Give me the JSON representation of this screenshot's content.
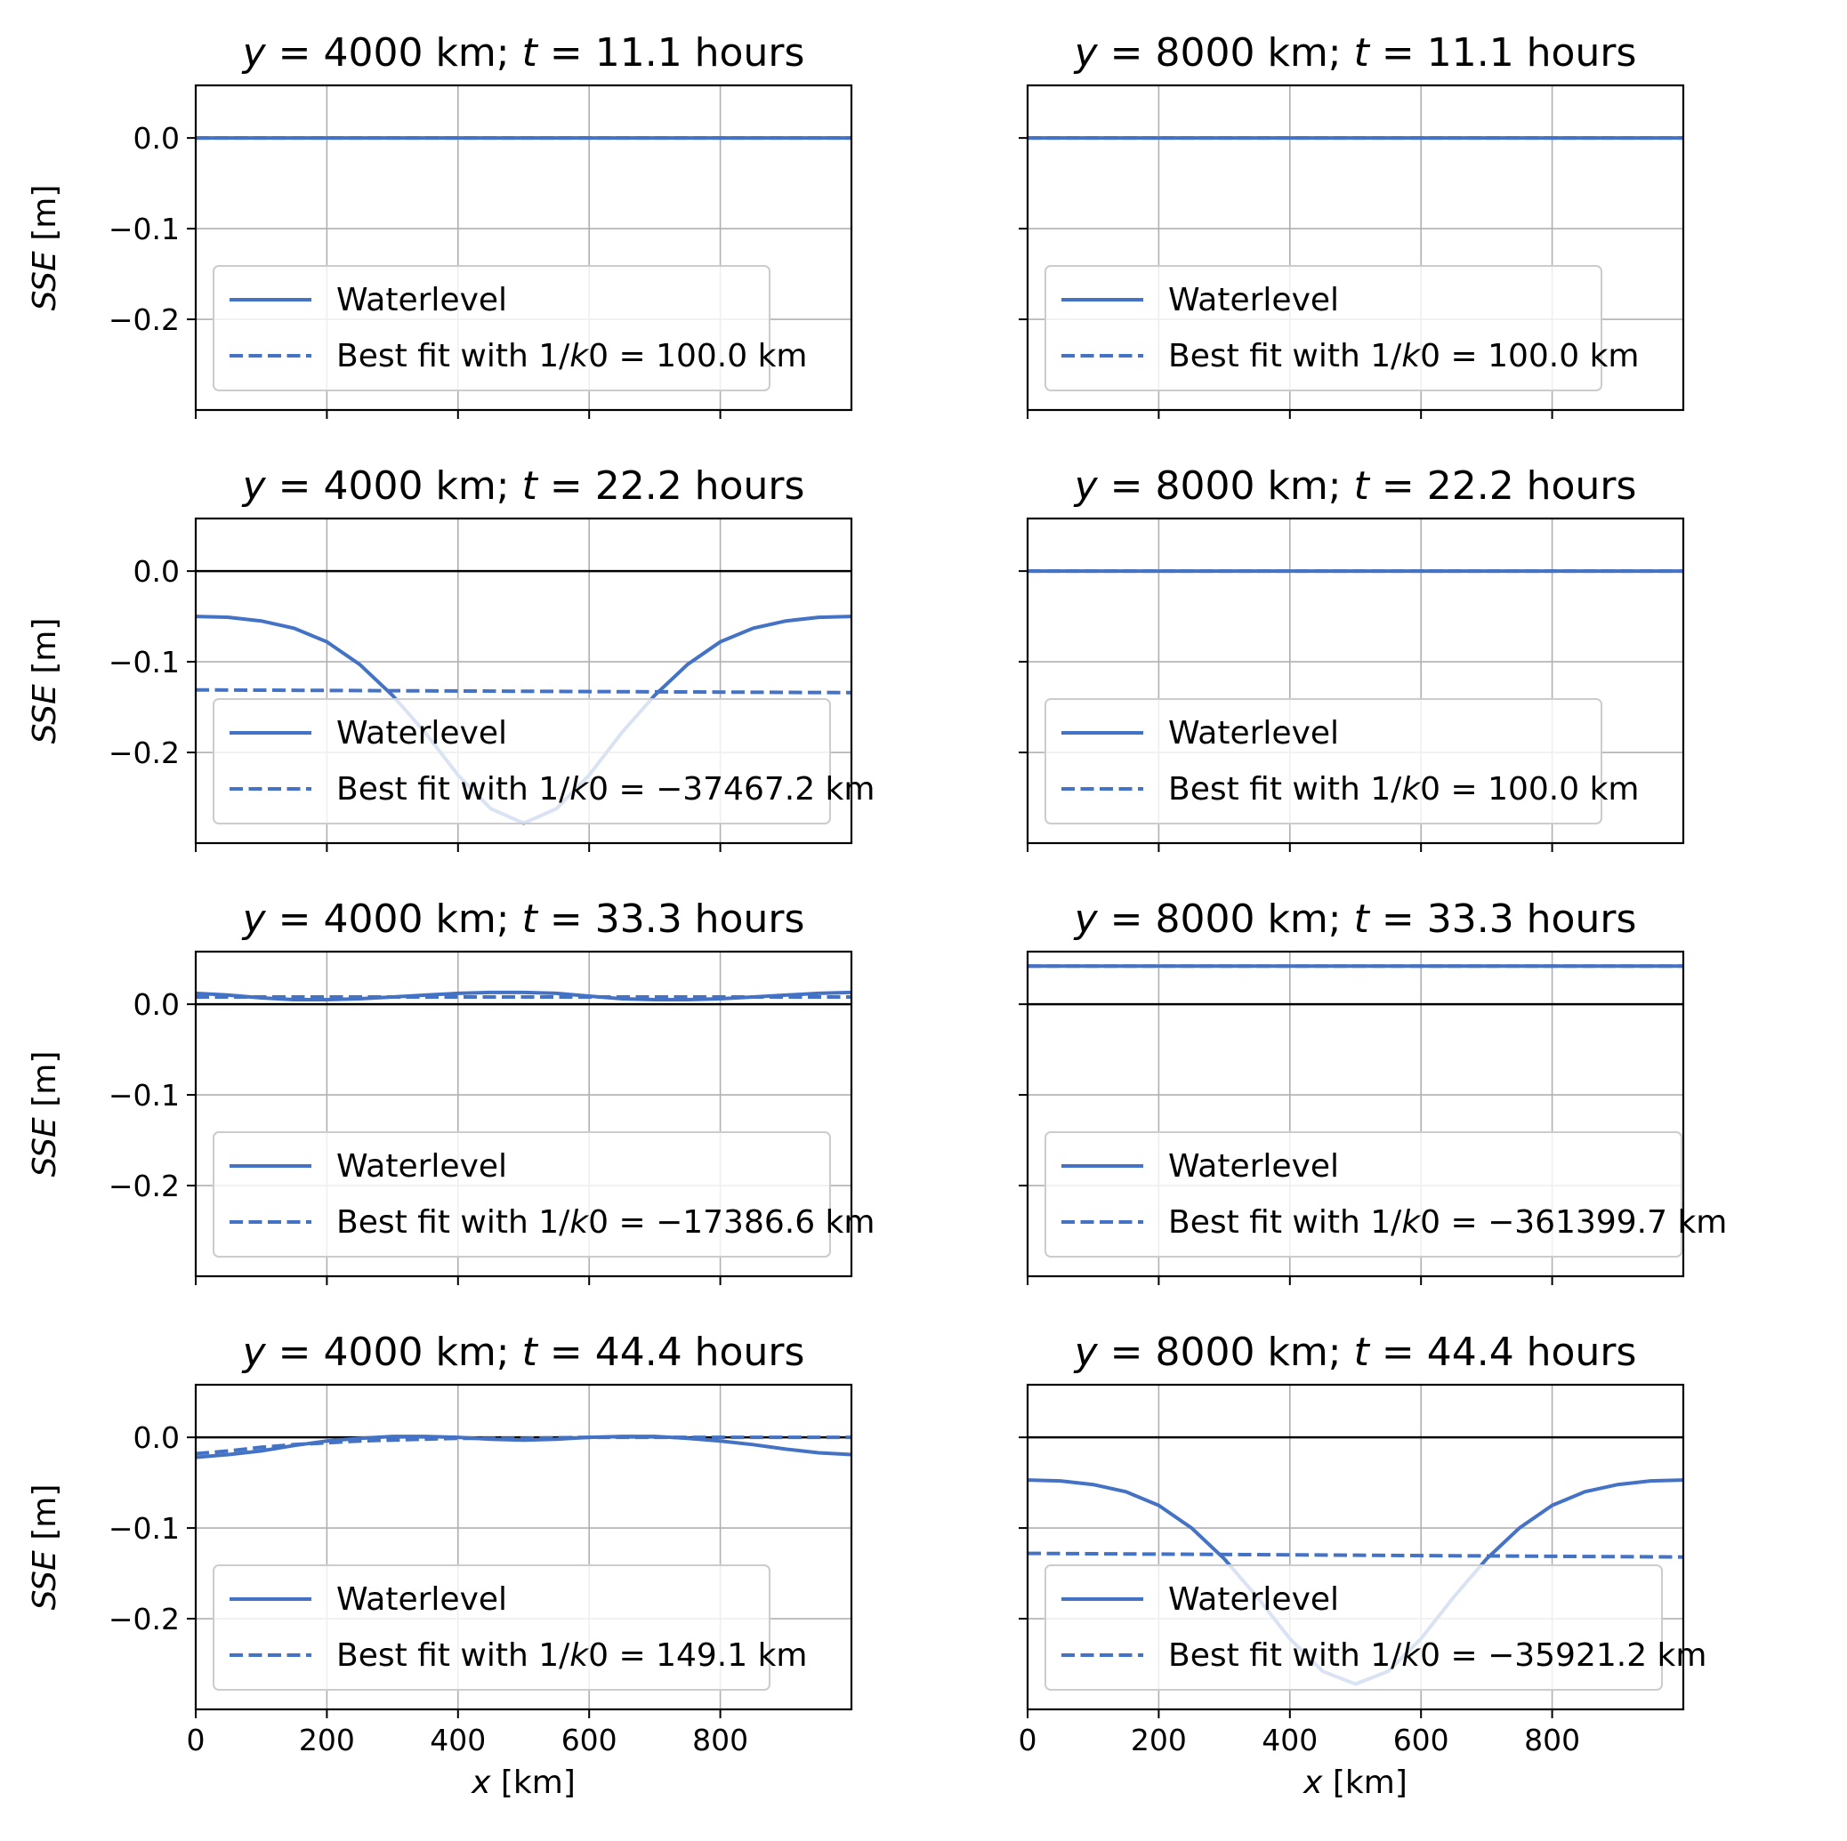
{
  "chart_data": {
    "type": "line",
    "figure": {
      "xlabel": "x [km]",
      "ylabel": "SSE [m]",
      "xlim": [
        0,
        1000
      ],
      "ylim": [
        -0.3,
        0.058
      ],
      "xticks": [
        0,
        200,
        400,
        600,
        800
      ],
      "xtick_labels": [
        "0",
        "200",
        "400",
        "600",
        "800"
      ],
      "yticks": [
        0.0,
        -0.1,
        -0.2
      ],
      "ytick_labels": [
        "0.0",
        "−0.1",
        "−0.2"
      ],
      "grid": true,
      "legend_placement": "lower-left",
      "zero_line_color": "#000000",
      "series_color": "#4472c4"
    },
    "panels": [
      {
        "title_y": "4000",
        "title_t": "11.1",
        "legend": [
          "Waterlevel",
          "Best fit with 1/k0 = 100.0 km"
        ],
        "fit_value": "= 100.0 km",
        "waterlevel": {
          "x": [
            0,
            1000
          ],
          "y": [
            0.0,
            0.0
          ]
        },
        "best_fit": {
          "x": [
            0,
            1000
          ],
          "y": [
            0.0,
            0.0
          ]
        }
      },
      {
        "title_y": "8000",
        "title_t": "11.1",
        "legend": [
          "Waterlevel",
          "Best fit with 1/k0 = 100.0 km"
        ],
        "fit_value": "= 100.0 km",
        "waterlevel": {
          "x": [
            0,
            1000
          ],
          "y": [
            0.0,
            0.0
          ]
        },
        "best_fit": {
          "x": [
            0,
            1000
          ],
          "y": [
            0.0,
            0.0
          ]
        }
      },
      {
        "title_y": "4000",
        "title_t": "22.2",
        "legend": [
          "Waterlevel",
          "Best fit with 1/k0 = −37467.2 km"
        ],
        "fit_value": "= −37467.2 km",
        "waterlevel": {
          "x": [
            0,
            50,
            100,
            150,
            200,
            250,
            300,
            350,
            400,
            450,
            500,
            550,
            600,
            650,
            700,
            750,
            800,
            850,
            900,
            950,
            1000
          ],
          "y": [
            -0.05,
            -0.051,
            -0.055,
            -0.063,
            -0.078,
            -0.103,
            -0.137,
            -0.178,
            -0.225,
            -0.262,
            -0.278,
            -0.262,
            -0.225,
            -0.178,
            -0.137,
            -0.103,
            -0.078,
            -0.063,
            -0.055,
            -0.051,
            -0.05
          ]
        },
        "best_fit": {
          "x": [
            0,
            1000
          ],
          "y": [
            -0.131,
            -0.134
          ]
        }
      },
      {
        "title_y": "8000",
        "title_t": "22.2",
        "legend": [
          "Waterlevel",
          "Best fit with 1/k0 = 100.0 km"
        ],
        "fit_value": "= 100.0 km",
        "waterlevel": {
          "x": [
            0,
            1000
          ],
          "y": [
            0.0,
            0.0
          ]
        },
        "best_fit": {
          "x": [
            0,
            1000
          ],
          "y": [
            0.0,
            0.0
          ]
        }
      },
      {
        "title_y": "4000",
        "title_t": "33.3",
        "legend": [
          "Waterlevel",
          "Best fit with 1/k0 = −17386.6 km"
        ],
        "fit_value": "= −17386.6 km",
        "waterlevel": {
          "x": [
            0,
            50,
            100,
            150,
            200,
            250,
            300,
            350,
            400,
            450,
            500,
            550,
            600,
            650,
            700,
            750,
            800,
            850,
            900,
            950,
            1000
          ],
          "y": [
            0.012,
            0.01,
            0.007,
            0.005,
            0.005,
            0.006,
            0.008,
            0.01,
            0.012,
            0.013,
            0.013,
            0.012,
            0.009,
            0.006,
            0.005,
            0.005,
            0.006,
            0.008,
            0.01,
            0.012,
            0.013
          ]
        },
        "best_fit": {
          "x": [
            0,
            1000
          ],
          "y": [
            0.008,
            0.008
          ]
        }
      },
      {
        "title_y": "8000",
        "title_t": "33.3",
        "legend": [
          "Waterlevel",
          "Best fit with 1/k0 = −361399.7 km"
        ],
        "fit_value": "= −361399.7 km",
        "waterlevel": {
          "x": [
            0,
            1000
          ],
          "y": [
            0.042,
            0.042
          ]
        },
        "best_fit": {
          "x": [
            0,
            1000
          ],
          "y": [
            0.042,
            0.042
          ]
        }
      },
      {
        "title_y": "4000",
        "title_t": "44.4",
        "legend": [
          "Waterlevel",
          "Best fit with 1/k0 = 149.1 km"
        ],
        "fit_value": "= 149.1 km",
        "waterlevel": {
          "x": [
            0,
            50,
            100,
            150,
            200,
            250,
            300,
            350,
            400,
            450,
            500,
            550,
            600,
            650,
            700,
            750,
            800,
            850,
            900,
            950,
            1000
          ],
          "y": [
            -0.022,
            -0.019,
            -0.015,
            -0.009,
            -0.004,
            -0.001,
            0.001,
            0.001,
            0.0,
            -0.002,
            -0.003,
            -0.002,
            0.0,
            0.001,
            0.001,
            -0.001,
            -0.004,
            -0.008,
            -0.013,
            -0.017,
            -0.019
          ]
        },
        "best_fit": {
          "x": [
            0,
            50,
            100,
            150,
            200,
            250,
            300,
            350,
            400,
            500,
            600,
            700,
            800,
            900,
            1000
          ],
          "y": [
            -0.018,
            -0.015,
            -0.011,
            -0.008,
            -0.006,
            -0.004,
            -0.003,
            -0.002,
            -0.001,
            -0.001,
            0.0,
            0.0,
            0.0,
            0.0,
            0.0
          ]
        }
      },
      {
        "title_y": "8000",
        "title_t": "44.4",
        "legend": [
          "Waterlevel",
          "Best fit with 1/k0 = −35921.2 km"
        ],
        "fit_value": "= −35921.2 km",
        "waterlevel": {
          "x": [
            0,
            50,
            100,
            150,
            200,
            250,
            300,
            350,
            400,
            450,
            500,
            550,
            600,
            650,
            700,
            750,
            800,
            850,
            900,
            950,
            1000
          ],
          "y": [
            -0.047,
            -0.048,
            -0.052,
            -0.06,
            -0.075,
            -0.1,
            -0.134,
            -0.176,
            -0.222,
            -0.258,
            -0.272,
            -0.258,
            -0.222,
            -0.176,
            -0.134,
            -0.1,
            -0.075,
            -0.06,
            -0.052,
            -0.048,
            -0.047
          ]
        },
        "best_fit": {
          "x": [
            0,
            1000
          ],
          "y": [
            -0.128,
            -0.132
          ]
        }
      }
    ]
  }
}
